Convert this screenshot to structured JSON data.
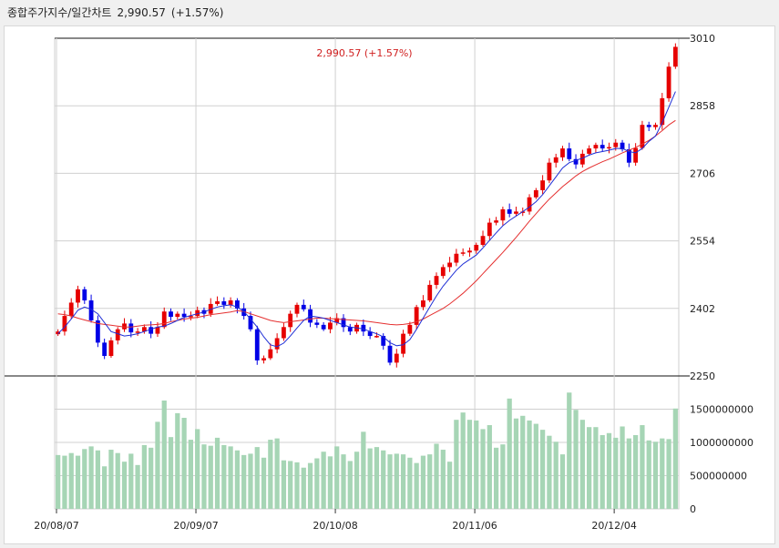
{
  "header": {
    "title": "종합주가지수/일간차트",
    "price": "2,990.57",
    "change": "(+1.57%)"
  },
  "colors": {
    "up": "#e60000",
    "down": "#0000e6",
    "ma_short": "#1f2fd6",
    "ma_long": "#e53030",
    "volume": "#a6d5b5",
    "grid": "#d0d0d0"
  },
  "chart_data": [
    {
      "type": "candlestick",
      "annotation": "2,990.57 (+1.57%)",
      "ylim": [
        2250,
        3010
      ],
      "yticks": [
        "3010",
        "2858",
        "2706",
        "2554",
        "2402",
        "2250"
      ],
      "xticks": [
        "20/08/07",
        "20/09/07",
        "20/10/08",
        "20/11/06",
        "20/12/04"
      ],
      "xtick_index": [
        0,
        21,
        42,
        63,
        84
      ],
      "close": [
        2350,
        2385,
        2415,
        2445,
        2420,
        2375,
        2325,
        2295,
        2330,
        2355,
        2368,
        2348,
        2350,
        2360,
        2345,
        2360,
        2395,
        2383,
        2390,
        2383,
        2385,
        2398,
        2390,
        2412,
        2418,
        2410,
        2420,
        2402,
        2385,
        2355,
        2285,
        2290,
        2310,
        2335,
        2360,
        2390,
        2410,
        2400,
        2370,
        2365,
        2355,
        2370,
        2380,
        2360,
        2350,
        2365,
        2350,
        2340,
        2340,
        2318,
        2280,
        2300,
        2345,
        2365,
        2405,
        2420,
        2455,
        2475,
        2495,
        2505,
        2525,
        2528,
        2532,
        2545,
        2565,
        2595,
        2600,
        2625,
        2615,
        2620,
        2620,
        2652,
        2668,
        2690,
        2730,
        2742,
        2762,
        2738,
        2726,
        2750,
        2762,
        2770,
        2762,
        2765,
        2775,
        2760,
        2730,
        2763,
        2815,
        2810,
        2815,
        2875,
        2946,
        2990.57
      ],
      "ma_short": [
        2345,
        2360,
        2378,
        2398,
        2405,
        2400,
        2390,
        2370,
        2350,
        2345,
        2340,
        2342,
        2345,
        2350,
        2355,
        2360,
        2362,
        2368,
        2375,
        2382,
        2386,
        2390,
        2394,
        2400,
        2405,
        2408,
        2410,
        2405,
        2395,
        2378,
        2360,
        2338,
        2320,
        2316,
        2324,
        2340,
        2358,
        2375,
        2385,
        2383,
        2380,
        2375,
        2370,
        2365,
        2360,
        2358,
        2356,
        2350,
        2345,
        2338,
        2325,
        2318,
        2320,
        2332,
        2355,
        2380,
        2405,
        2430,
        2452,
        2470,
        2488,
        2502,
        2512,
        2522,
        2538,
        2555,
        2572,
        2588,
        2600,
        2610,
        2620,
        2630,
        2642,
        2658,
        2678,
        2698,
        2718,
        2730,
        2735,
        2740,
        2747,
        2752,
        2755,
        2758,
        2762,
        2762,
        2755,
        2752,
        2762,
        2778,
        2790,
        2820,
        2855,
        2890
      ],
      "ma_long": [
        2390,
        2388,
        2385,
        2380,
        2376,
        2372,
        2368,
        2366,
        2364,
        2362,
        2360,
        2360,
        2362,
        2364,
        2365,
        2366,
        2368,
        2372,
        2375,
        2378,
        2380,
        2382,
        2385,
        2388,
        2390,
        2392,
        2394,
        2397,
        2395,
        2390,
        2385,
        2380,
        2375,
        2372,
        2370,
        2372,
        2374,
        2376,
        2378,
        2380,
        2380,
        2379,
        2378,
        2377,
        2376,
        2375,
        2374,
        2372,
        2370,
        2368,
        2366,
        2365,
        2366,
        2368,
        2372,
        2378,
        2386,
        2394,
        2402,
        2412,
        2424,
        2436,
        2450,
        2464,
        2480,
        2496,
        2512,
        2528,
        2545,
        2562,
        2580,
        2598,
        2615,
        2632,
        2648,
        2662,
        2676,
        2688,
        2700,
        2710,
        2718,
        2725,
        2732,
        2738,
        2745,
        2752,
        2758,
        2764,
        2772,
        2780,
        2790,
        2802,
        2815,
        2825
      ]
    },
    {
      "type": "bar",
      "ylim": [
        0,
        2000000000
      ],
      "yticks": [
        "1500000000",
        "1000000000",
        "500000000",
        "0"
      ],
      "ytick_values": [
        1500000000,
        1000000000,
        500000000,
        0
      ],
      "values": [
        810000000,
        800000000,
        840000000,
        800000000,
        900000000,
        940000000,
        880000000,
        640000000,
        890000000,
        840000000,
        710000000,
        830000000,
        660000000,
        960000000,
        920000000,
        1310000000,
        1630000000,
        1080000000,
        1440000000,
        1370000000,
        1040000000,
        1200000000,
        970000000,
        950000000,
        1070000000,
        960000000,
        940000000,
        880000000,
        810000000,
        830000000,
        930000000,
        770000000,
        1040000000,
        1060000000,
        730000000,
        720000000,
        700000000,
        620000000,
        690000000,
        760000000,
        860000000,
        790000000,
        940000000,
        820000000,
        720000000,
        860000000,
        1160000000,
        910000000,
        930000000,
        880000000,
        820000000,
        830000000,
        820000000,
        770000000,
        690000000,
        800000000,
        820000000,
        980000000,
        890000000,
        710000000,
        1340000000,
        1450000000,
        1340000000,
        1330000000,
        1200000000,
        1260000000,
        920000000,
        970000000,
        1660000000,
        1360000000,
        1400000000,
        1330000000,
        1280000000,
        1190000000,
        1100000000,
        1010000000,
        820000000,
        1750000000,
        1490000000,
        1340000000,
        1230000000,
        1230000000,
        1110000000,
        1140000000,
        1070000000,
        1240000000,
        1060000000,
        1110000000,
        1260000000,
        1030000000,
        1010000000,
        1060000000,
        1050000000,
        1510000000
      ]
    }
  ]
}
